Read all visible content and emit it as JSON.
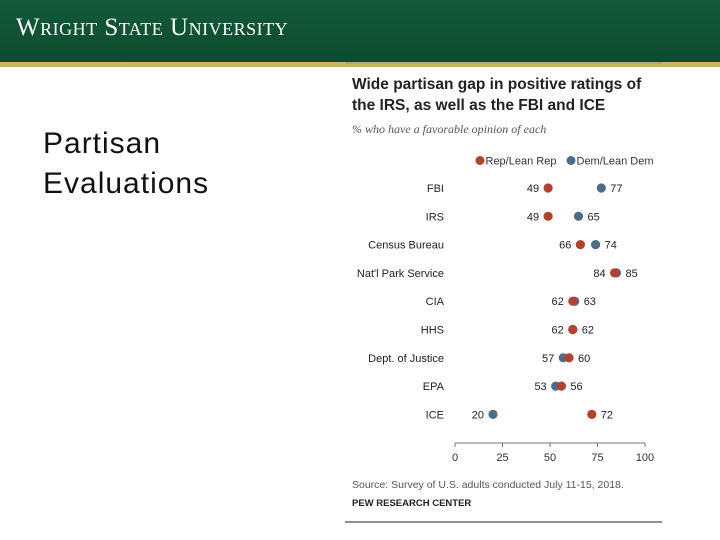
{
  "header": {
    "university": "Wright State University",
    "bar_color": "#0d4a2e",
    "rule_color": "#c9b46a"
  },
  "slide": {
    "title": "Partisan Evaluations"
  },
  "chart_data": {
    "type": "scatter",
    "subtype": "dot-plot",
    "title_lines": [
      "Wide partisan gap in positive ratings of",
      "the IRS, as well as the FBI and ICE"
    ],
    "subtitle": "% who have a favorable opinion of each",
    "categories": [
      "FBI",
      "IRS",
      "Census Bureau",
      "Nat'l Park Service",
      "CIA",
      "HHS",
      "Dept. of Justice",
      "EPA",
      "ICE"
    ],
    "series": [
      {
        "name": "Rep/Lean Rep",
        "color": "#b5412c",
        "values": [
          49,
          49,
          66,
          84,
          62,
          62,
          60,
          56,
          72
        ]
      },
      {
        "name": "Dem/Lean Dem",
        "color": "#4a6e8a",
        "values": [
          77,
          65,
          74,
          85,
          63,
          62,
          57,
          53,
          20
        ]
      }
    ],
    "xlim": [
      0,
      100
    ],
    "x_ticks": [
      0,
      25,
      50,
      75,
      100
    ],
    "legend_position": "top",
    "grid": false,
    "source": "Source: Survey of U.S. adults conducted July 11-15, 2018.",
    "organization": "PEW RESEARCH CENTER"
  }
}
